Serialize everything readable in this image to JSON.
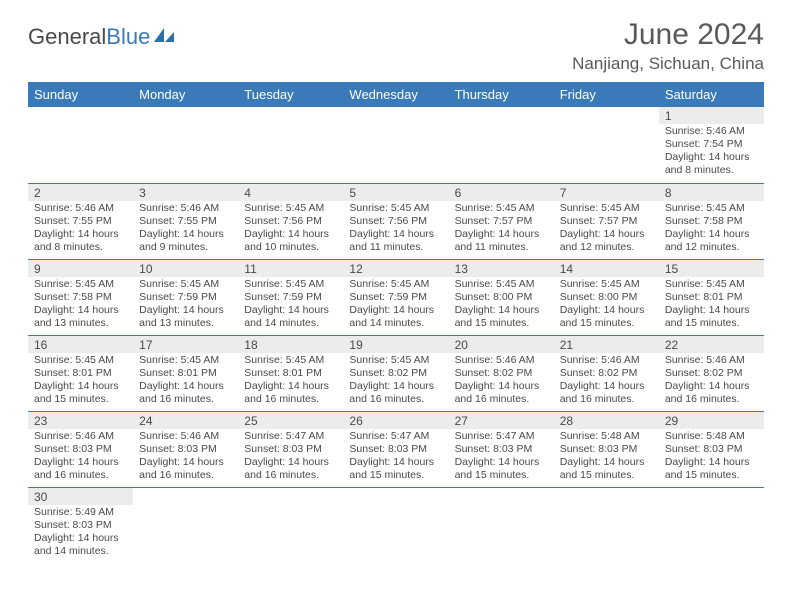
{
  "brand": {
    "name_part1": "General",
    "name_part2": "Blue"
  },
  "title": "June 2024",
  "location": "Nanjiang, Sichuan, China",
  "colors": {
    "header_bg": "#3a7ab8",
    "header_text": "#ffffff",
    "daynum_bg": "#ececec",
    "text": "#4a4a4a",
    "row_border": "#3a7ab8",
    "page_bg": "#ffffff"
  },
  "day_headers": [
    "Sunday",
    "Monday",
    "Tuesday",
    "Wednesday",
    "Thursday",
    "Friday",
    "Saturday"
  ],
  "weeks": [
    [
      {
        "n": "",
        "sr": "",
        "ss": "",
        "dl": ""
      },
      {
        "n": "",
        "sr": "",
        "ss": "",
        "dl": ""
      },
      {
        "n": "",
        "sr": "",
        "ss": "",
        "dl": ""
      },
      {
        "n": "",
        "sr": "",
        "ss": "",
        "dl": ""
      },
      {
        "n": "",
        "sr": "",
        "ss": "",
        "dl": ""
      },
      {
        "n": "",
        "sr": "",
        "ss": "",
        "dl": ""
      },
      {
        "n": "1",
        "sr": "Sunrise: 5:46 AM",
        "ss": "Sunset: 7:54 PM",
        "dl": "Daylight: 14 hours and 8 minutes."
      }
    ],
    [
      {
        "n": "2",
        "sr": "Sunrise: 5:46 AM",
        "ss": "Sunset: 7:55 PM",
        "dl": "Daylight: 14 hours and 8 minutes."
      },
      {
        "n": "3",
        "sr": "Sunrise: 5:46 AM",
        "ss": "Sunset: 7:55 PM",
        "dl": "Daylight: 14 hours and 9 minutes."
      },
      {
        "n": "4",
        "sr": "Sunrise: 5:45 AM",
        "ss": "Sunset: 7:56 PM",
        "dl": "Daylight: 14 hours and 10 minutes."
      },
      {
        "n": "5",
        "sr": "Sunrise: 5:45 AM",
        "ss": "Sunset: 7:56 PM",
        "dl": "Daylight: 14 hours and 11 minutes."
      },
      {
        "n": "6",
        "sr": "Sunrise: 5:45 AM",
        "ss": "Sunset: 7:57 PM",
        "dl": "Daylight: 14 hours and 11 minutes."
      },
      {
        "n": "7",
        "sr": "Sunrise: 5:45 AM",
        "ss": "Sunset: 7:57 PM",
        "dl": "Daylight: 14 hours and 12 minutes."
      },
      {
        "n": "8",
        "sr": "Sunrise: 5:45 AM",
        "ss": "Sunset: 7:58 PM",
        "dl": "Daylight: 14 hours and 12 minutes."
      }
    ],
    [
      {
        "n": "9",
        "sr": "Sunrise: 5:45 AM",
        "ss": "Sunset: 7:58 PM",
        "dl": "Daylight: 14 hours and 13 minutes."
      },
      {
        "n": "10",
        "sr": "Sunrise: 5:45 AM",
        "ss": "Sunset: 7:59 PM",
        "dl": "Daylight: 14 hours and 13 minutes."
      },
      {
        "n": "11",
        "sr": "Sunrise: 5:45 AM",
        "ss": "Sunset: 7:59 PM",
        "dl": "Daylight: 14 hours and 14 minutes."
      },
      {
        "n": "12",
        "sr": "Sunrise: 5:45 AM",
        "ss": "Sunset: 7:59 PM",
        "dl": "Daylight: 14 hours and 14 minutes."
      },
      {
        "n": "13",
        "sr": "Sunrise: 5:45 AM",
        "ss": "Sunset: 8:00 PM",
        "dl": "Daylight: 14 hours and 15 minutes."
      },
      {
        "n": "14",
        "sr": "Sunrise: 5:45 AM",
        "ss": "Sunset: 8:00 PM",
        "dl": "Daylight: 14 hours and 15 minutes."
      },
      {
        "n": "15",
        "sr": "Sunrise: 5:45 AM",
        "ss": "Sunset: 8:01 PM",
        "dl": "Daylight: 14 hours and 15 minutes."
      }
    ],
    [
      {
        "n": "16",
        "sr": "Sunrise: 5:45 AM",
        "ss": "Sunset: 8:01 PM",
        "dl": "Daylight: 14 hours and 15 minutes."
      },
      {
        "n": "17",
        "sr": "Sunrise: 5:45 AM",
        "ss": "Sunset: 8:01 PM",
        "dl": "Daylight: 14 hours and 16 minutes."
      },
      {
        "n": "18",
        "sr": "Sunrise: 5:45 AM",
        "ss": "Sunset: 8:01 PM",
        "dl": "Daylight: 14 hours and 16 minutes."
      },
      {
        "n": "19",
        "sr": "Sunrise: 5:45 AM",
        "ss": "Sunset: 8:02 PM",
        "dl": "Daylight: 14 hours and 16 minutes."
      },
      {
        "n": "20",
        "sr": "Sunrise: 5:46 AM",
        "ss": "Sunset: 8:02 PM",
        "dl": "Daylight: 14 hours and 16 minutes."
      },
      {
        "n": "21",
        "sr": "Sunrise: 5:46 AM",
        "ss": "Sunset: 8:02 PM",
        "dl": "Daylight: 14 hours and 16 minutes."
      },
      {
        "n": "22",
        "sr": "Sunrise: 5:46 AM",
        "ss": "Sunset: 8:02 PM",
        "dl": "Daylight: 14 hours and 16 minutes."
      }
    ],
    [
      {
        "n": "23",
        "sr": "Sunrise: 5:46 AM",
        "ss": "Sunset: 8:03 PM",
        "dl": "Daylight: 14 hours and 16 minutes."
      },
      {
        "n": "24",
        "sr": "Sunrise: 5:46 AM",
        "ss": "Sunset: 8:03 PM",
        "dl": "Daylight: 14 hours and 16 minutes."
      },
      {
        "n": "25",
        "sr": "Sunrise: 5:47 AM",
        "ss": "Sunset: 8:03 PM",
        "dl": "Daylight: 14 hours and 16 minutes."
      },
      {
        "n": "26",
        "sr": "Sunrise: 5:47 AM",
        "ss": "Sunset: 8:03 PM",
        "dl": "Daylight: 14 hours and 15 minutes."
      },
      {
        "n": "27",
        "sr": "Sunrise: 5:47 AM",
        "ss": "Sunset: 8:03 PM",
        "dl": "Daylight: 14 hours and 15 minutes."
      },
      {
        "n": "28",
        "sr": "Sunrise: 5:48 AM",
        "ss": "Sunset: 8:03 PM",
        "dl": "Daylight: 14 hours and 15 minutes."
      },
      {
        "n": "29",
        "sr": "Sunrise: 5:48 AM",
        "ss": "Sunset: 8:03 PM",
        "dl": "Daylight: 14 hours and 15 minutes."
      }
    ],
    [
      {
        "n": "30",
        "sr": "Sunrise: 5:49 AM",
        "ss": "Sunset: 8:03 PM",
        "dl": "Daylight: 14 hours and 14 minutes."
      },
      {
        "n": "",
        "sr": "",
        "ss": "",
        "dl": ""
      },
      {
        "n": "",
        "sr": "",
        "ss": "",
        "dl": ""
      },
      {
        "n": "",
        "sr": "",
        "ss": "",
        "dl": ""
      },
      {
        "n": "",
        "sr": "",
        "ss": "",
        "dl": ""
      },
      {
        "n": "",
        "sr": "",
        "ss": "",
        "dl": ""
      },
      {
        "n": "",
        "sr": "",
        "ss": "",
        "dl": ""
      }
    ]
  ]
}
